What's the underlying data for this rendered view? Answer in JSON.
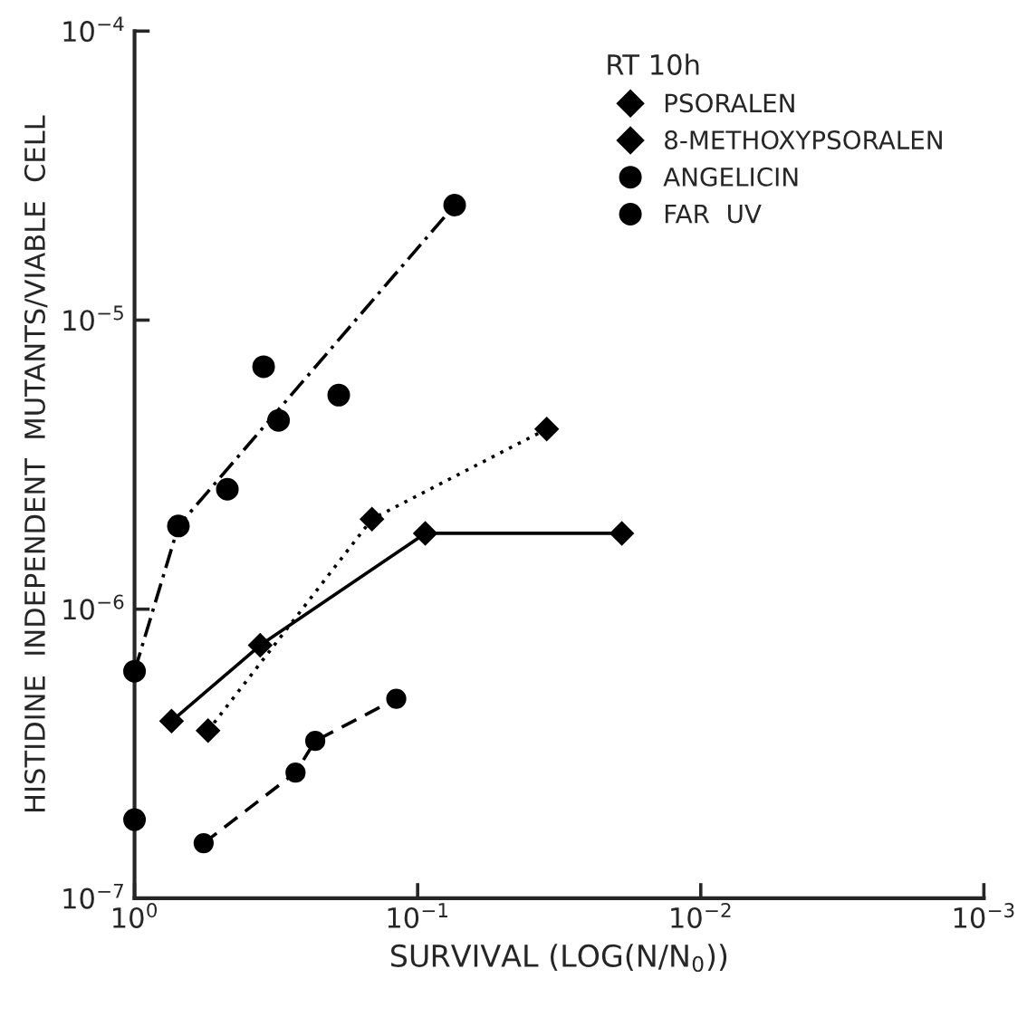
{
  "chart_data": {
    "type": "line",
    "xlabel": "SURVIVAL (LOG(N/N$_{0}$))",
    "ylabel": "HISTIDINE  INDEPENDENT  MUTANTS/VIABLE  CELL",
    "legend_title": "RT 10h",
    "legend": "top right",
    "log": "xy",
    "grid": false,
    "xlim": [
      1,
      0.001
    ],
    "ylim": [
      1e-07,
      0.0001
    ],
    "xticks": [
      {
        "value": 1,
        "label": "10$^{0}$"
      },
      {
        "value": 0.1,
        "label": "10$^{−1}$"
      },
      {
        "value": 0.01,
        "label": "10$^{−2}$"
      },
      {
        "value": 0.001,
        "label": "10$^{−3}$"
      }
    ],
    "yticks": [
      {
        "value": 1e-07,
        "label": "10$^{−7}$"
      },
      {
        "value": 1e-06,
        "label": "10$^{−6}$"
      },
      {
        "value": 1e-05,
        "label": "10$^{−5}$"
      },
      {
        "value": 0.0001,
        "label": "10$^{−4}$"
      }
    ],
    "series": [
      {
        "name": "PSORALEN",
        "type": "line",
        "color": "#000000",
        "marker": "diamond",
        "line_style": "dotted",
        "x": [
          0.55,
          0.145,
          0.035
        ],
        "values": [
          3.8e-07,
          2.05e-06,
          4.2e-06
        ]
      },
      {
        "name": "8-METHOXYPSORALEN",
        "type": "line",
        "color": "#000000",
        "marker": "diamond",
        "line_style": "solid",
        "x": [
          0.74,
          0.36,
          0.094,
          0.019
        ],
        "values": [
          4.1e-07,
          7.5e-07,
          1.83e-06,
          1.83e-06
        ]
      },
      {
        "name": "ANGELICIN",
        "type": "line",
        "color": "#000000",
        "marker": "circle",
        "line_style": "dashed",
        "x": [
          0.57,
          0.27,
          0.23,
          0.119
        ],
        "values": [
          1.55e-07,
          2.72e-07,
          3.5e-07,
          4.9e-07
        ]
      },
      {
        "name": "FAR  UV",
        "type": "scatter",
        "color": "#000000",
        "marker": "circle",
        "x": [
          1.0,
          1.0,
          0.7,
          0.47,
          0.35,
          0.31,
          0.19,
          0.074
        ],
        "values": [
          1.87e-07,
          6.1e-07,
          1.94e-06,
          2.6e-06,
          6.9e-06,
          4.5e-06,
          5.5e-06,
          2.5e-05
        ]
      },
      {
        "color": "#000000",
        "marker": "none",
        "line_style": "dashdot",
        "x": [
          1.0,
          0.7,
          0.074
        ],
        "values": [
          6.1e-07,
          1.94e-06,
          2.5e-05
        ]
      }
    ]
  }
}
